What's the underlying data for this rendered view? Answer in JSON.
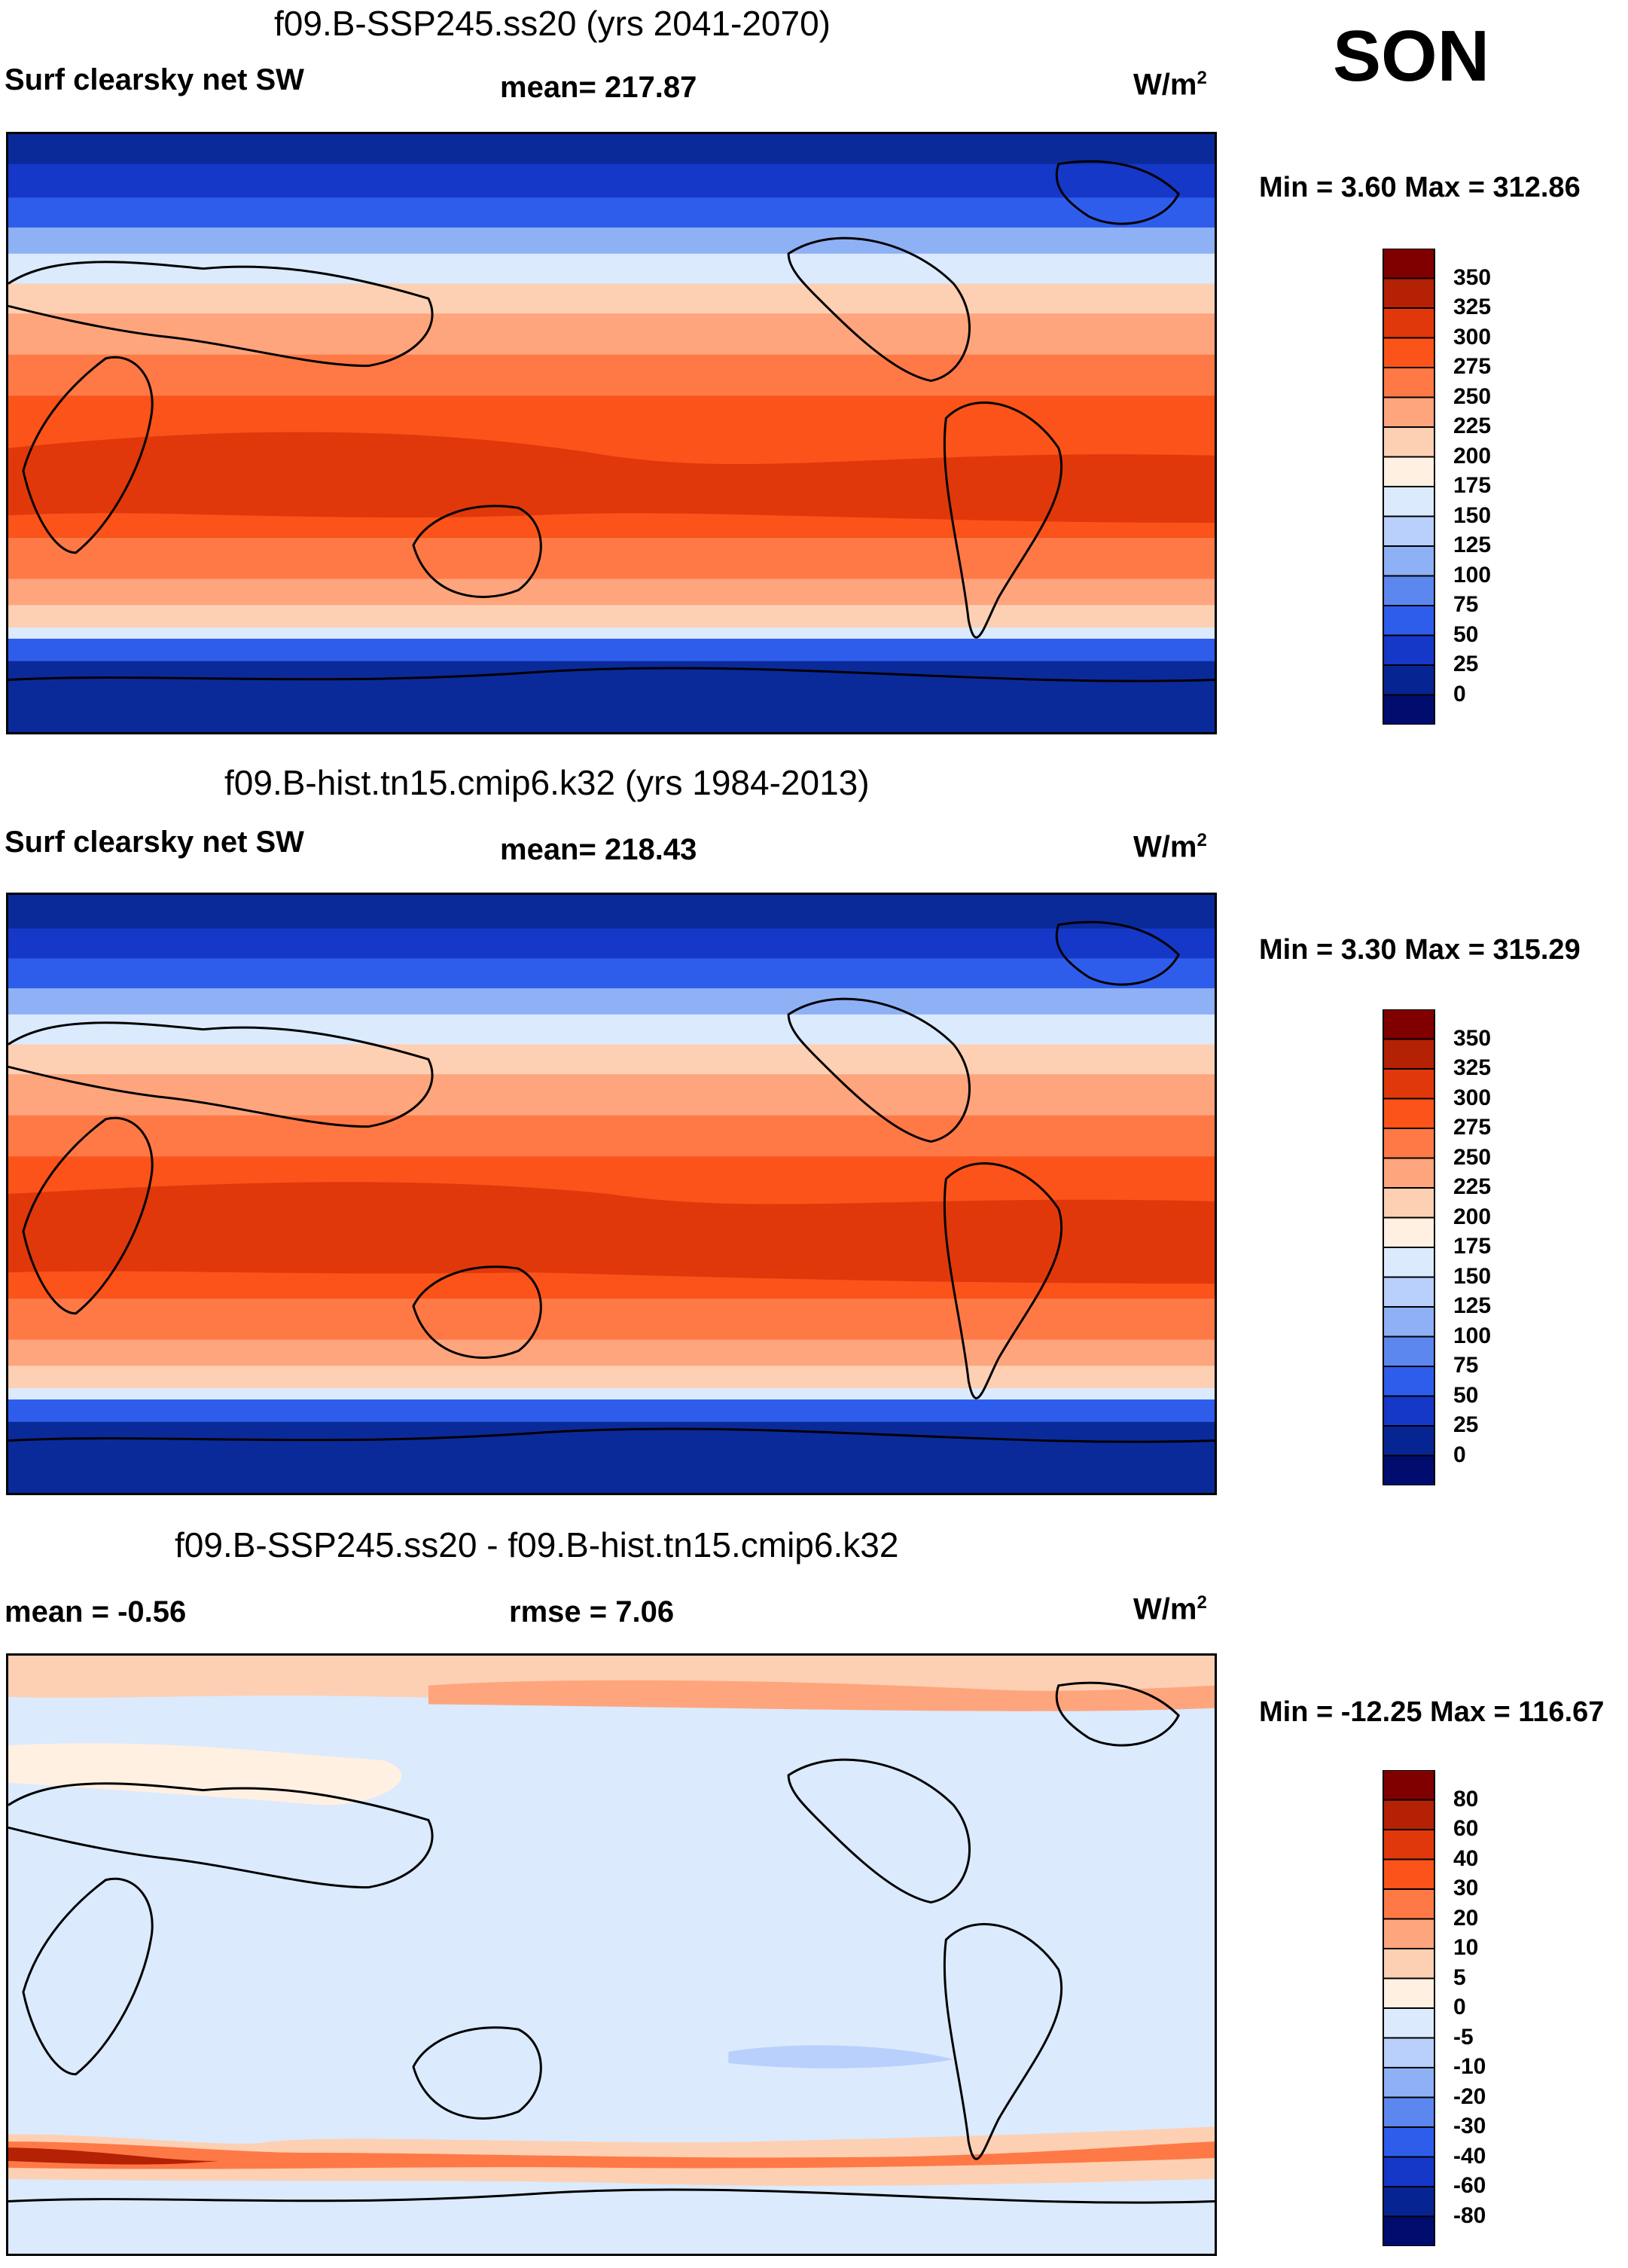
{
  "season": "SON",
  "panels": [
    {
      "title": "f09.B-SSP245.ss20 (yrs 2041-2070)",
      "left_label": "Surf clearsky net SW",
      "center_label": "mean= 217.87",
      "units": "W/m",
      "units_sup": "2",
      "min_max": "Min =   3.60 Max = 312.86",
      "colorbar": {
        "ticks": [
          "350",
          "325",
          "300",
          "275",
          "250",
          "225",
          "200",
          "175",
          "150",
          "125",
          "100",
          "75",
          "50",
          "25",
          "0"
        ],
        "colors": [
          "#800000",
          "#b42105",
          "#e0380b",
          "#fb5319",
          "#fe7946",
          "#fea57d",
          "#fdd0b3",
          "#fff0e2",
          "#dbeafd",
          "#b8d0fb",
          "#8eb0f5",
          "#5b87ee",
          "#2f5deb",
          "#1538c8",
          "#072592",
          "#000c6e"
        ]
      },
      "chart_data": {
        "type": "heatmap",
        "title": "f09.B-SSP245.ss20 (yrs 2041-2070)",
        "variable": "Surf clearsky net SW",
        "units": "W/m2",
        "mean": 217.87,
        "min": 3.6,
        "max": 312.86,
        "levels": [
          0,
          25,
          50,
          75,
          100,
          125,
          150,
          175,
          200,
          225,
          250,
          275,
          300,
          325,
          350
        ]
      }
    },
    {
      "title": "f09.B-hist.tn15.cmip6.k32 (yrs 1984-2013)",
      "left_label": "Surf clearsky net SW",
      "center_label": "mean= 218.43",
      "units": "W/m",
      "units_sup": "2",
      "min_max": "Min =   3.30 Max = 315.29",
      "colorbar": {
        "ticks": [
          "350",
          "325",
          "300",
          "275",
          "250",
          "225",
          "200",
          "175",
          "150",
          "125",
          "100",
          "75",
          "50",
          "25",
          "0"
        ],
        "colors": [
          "#800000",
          "#b42105",
          "#e0380b",
          "#fb5319",
          "#fe7946",
          "#fea57d",
          "#fdd0b3",
          "#fff0e2",
          "#dbeafd",
          "#b8d0fb",
          "#8eb0f5",
          "#5b87ee",
          "#2f5deb",
          "#1538c8",
          "#072592",
          "#000c6e"
        ]
      },
      "chart_data": {
        "type": "heatmap",
        "title": "f09.B-hist.tn15.cmip6.k32 (yrs 1984-2013)",
        "variable": "Surf clearsky net SW",
        "units": "W/m2",
        "mean": 218.43,
        "min": 3.3,
        "max": 315.29,
        "levels": [
          0,
          25,
          50,
          75,
          100,
          125,
          150,
          175,
          200,
          225,
          250,
          275,
          300,
          325,
          350
        ]
      }
    },
    {
      "title": "f09.B-SSP245.ss20 - f09.B-hist.tn15.cmip6.k32",
      "left_label": "mean =  -0.56",
      "center_label": "rmse =    7.06",
      "units": "W/m",
      "units_sup": "2",
      "min_max": "Min = -12.25 Max = 116.67",
      "colorbar": {
        "ticks": [
          "80",
          "60",
          "40",
          "30",
          "20",
          "10",
          "5",
          "0",
          "-5",
          "-10",
          "-20",
          "-30",
          "-40",
          "-60",
          "-80"
        ],
        "colors": [
          "#800000",
          "#b42105",
          "#e0380b",
          "#fb5319",
          "#fe7946",
          "#fea57d",
          "#fdd0b3",
          "#fff0e2",
          "#dbeafd",
          "#b8d0fb",
          "#8eb0f5",
          "#5b87ee",
          "#2f5deb",
          "#1538c8",
          "#072592",
          "#000c6e"
        ]
      },
      "chart_data": {
        "type": "heatmap",
        "title": "f09.B-SSP245.ss20 - f09.B-hist.tn15.cmip6.k32",
        "units": "W/m2",
        "mean": -0.56,
        "rmse": 7.06,
        "min": -12.25,
        "max": 116.67,
        "levels": [
          -80,
          -60,
          -40,
          -30,
          -20,
          -10,
          -5,
          0,
          5,
          10,
          20,
          30,
          40,
          60,
          80
        ]
      }
    }
  ]
}
